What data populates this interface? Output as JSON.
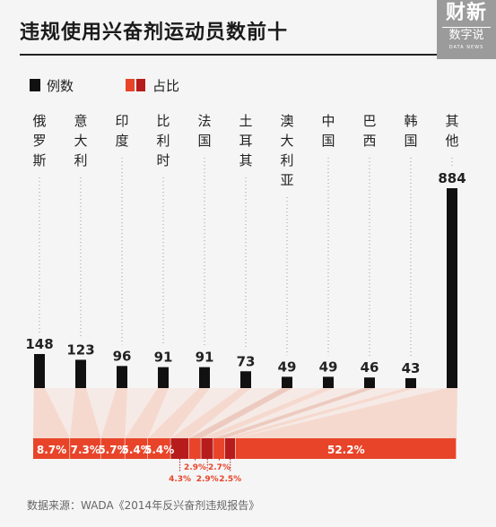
{
  "title": "违规使用兴奋剂运动员数前十",
  "logo": {
    "line1": "财新",
    "line2": "数字说",
    "line3": "DATA NEWS"
  },
  "legend": {
    "count_label": "例数",
    "share_label": "占比"
  },
  "colors": {
    "bar": "#111111",
    "red": "#e8442a",
    "dark_red": "#b71c1c",
    "band": "#f6d7cc",
    "band_dark": "#e8bfb1",
    "dotted": "#999999",
    "logo_bg": "#9b9b9b"
  },
  "source": "数据来源：WADA《2014年反兴奋剂违规报告》",
  "chart_data": {
    "type": "bar",
    "categories": [
      "俄罗斯",
      "意大利",
      "印度",
      "比利时",
      "法国",
      "土耳其",
      "澳大利亚",
      "中国",
      "巴西",
      "韩国",
      "其他"
    ],
    "values": [
      148,
      123,
      96,
      91,
      91,
      73,
      49,
      49,
      46,
      43,
      884
    ],
    "value_labels": [
      "148",
      "123",
      "96",
      "91",
      "91",
      "73",
      "49",
      "49",
      "46",
      "43",
      "884"
    ],
    "shares": [
      8.7,
      7.3,
      5.7,
      5.4,
      5.4,
      4.3,
      2.9,
      2.9,
      2.7,
      2.5,
      52.2
    ],
    "share_labels": [
      "8.7%",
      "7.3%",
      "5.7%",
      "5.4%",
      "5.4%",
      "4.3%",
      "2.9%",
      "2.9%",
      "2.7%",
      "2.5%",
      "52.2%"
    ],
    "series": [
      {
        "name": "例数",
        "values": [
          148,
          123,
          96,
          91,
          91,
          73,
          49,
          49,
          46,
          43,
          884
        ]
      },
      {
        "name": "占比",
        "values": [
          8.7,
          7.3,
          5.7,
          5.4,
          5.4,
          4.3,
          2.9,
          2.9,
          2.7,
          2.5,
          52.2
        ]
      }
    ],
    "legend_position": "top-left",
    "grid": false
  }
}
